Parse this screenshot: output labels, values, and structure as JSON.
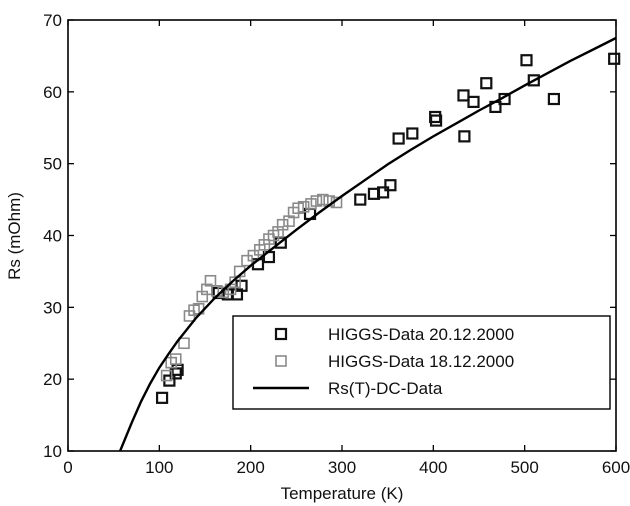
{
  "chart_data": {
    "type": "scatter",
    "title": "",
    "xlabel": "Temperature (K)",
    "ylabel": "Rs (mOhm)",
    "xlim": [
      0,
      600
    ],
    "ylim": [
      10,
      70
    ],
    "xticks": [
      0,
      100,
      200,
      300,
      400,
      500,
      600
    ],
    "yticks": [
      10,
      20,
      30,
      40,
      50,
      60,
      70
    ],
    "grid": false,
    "legend_position": "bottom-right",
    "series": [
      {
        "name": "HIGGS-Data 20.12.2000",
        "kind": "scatter",
        "marker": "square",
        "color": "#111111",
        "points": [
          [
            103,
            17.4
          ],
          [
            111,
            19.8
          ],
          [
            118,
            20.8
          ],
          [
            120,
            21.3
          ],
          [
            165,
            32.0
          ],
          [
            175,
            31.8
          ],
          [
            185,
            31.8
          ],
          [
            190,
            33.0
          ],
          [
            208,
            36.0
          ],
          [
            220,
            37.0
          ],
          [
            233,
            39.0
          ],
          [
            265,
            43.0
          ],
          [
            320,
            45.0
          ],
          [
            335,
            45.8
          ],
          [
            345,
            46.0
          ],
          [
            353,
            47.0
          ],
          [
            362,
            53.5
          ],
          [
            377,
            54.2
          ],
          [
            402,
            56.5
          ],
          [
            403,
            56.0
          ],
          [
            433,
            59.5
          ],
          [
            434,
            53.8
          ],
          [
            444,
            58.6
          ],
          [
            458,
            61.2
          ],
          [
            468,
            57.9
          ],
          [
            478,
            59.0
          ],
          [
            502,
            64.4
          ],
          [
            510,
            61.6
          ],
          [
            532,
            59.0
          ],
          [
            598,
            64.6
          ]
        ]
      },
      {
        "name": "HIGGS-Data 18.12.2000",
        "kind": "scatter",
        "marker": "square",
        "color": "#8a8a8a",
        "points": [
          [
            108,
            20.5
          ],
          [
            113,
            22.3
          ],
          [
            118,
            22.8
          ],
          [
            127,
            25.0
          ],
          [
            133,
            28.8
          ],
          [
            138,
            29.6
          ],
          [
            143,
            29.8
          ],
          [
            147,
            31.5
          ],
          [
            152,
            32.5
          ],
          [
            156,
            33.7
          ],
          [
            163,
            32.3
          ],
          [
            170,
            32.1
          ],
          [
            178,
            32.5
          ],
          [
            183,
            33.5
          ],
          [
            188,
            35.0
          ],
          [
            196,
            36.5
          ],
          [
            203,
            37.2
          ],
          [
            210,
            38.0
          ],
          [
            215,
            38.7
          ],
          [
            220,
            39.5
          ],
          [
            225,
            40.0
          ],
          [
            230,
            40.5
          ],
          [
            235,
            41.5
          ],
          [
            242,
            42.0
          ],
          [
            247,
            43.2
          ],
          [
            252,
            43.8
          ],
          [
            258,
            44.0
          ],
          [
            266,
            44.4
          ],
          [
            272,
            44.8
          ],
          [
            279,
            45.0
          ],
          [
            286,
            44.8
          ],
          [
            294,
            44.6
          ]
        ]
      },
      {
        "name": "Rs(T)-DC-Data",
        "kind": "line",
        "color": "#000000",
        "points": [
          [
            57,
            10.0
          ],
          [
            70,
            14.0
          ],
          [
            80,
            16.9
          ],
          [
            90,
            19.4
          ],
          [
            100,
            21.6
          ],
          [
            110,
            23.5
          ],
          [
            120,
            25.3
          ],
          [
            140,
            28.5
          ],
          [
            160,
            31.2
          ],
          [
            180,
            33.6
          ],
          [
            200,
            35.8
          ],
          [
            225,
            38.3
          ],
          [
            250,
            40.8
          ],
          [
            275,
            43.2
          ],
          [
            300,
            45.5
          ],
          [
            325,
            47.7
          ],
          [
            350,
            49.9
          ],
          [
            375,
            51.9
          ],
          [
            400,
            53.8
          ],
          [
            425,
            55.6
          ],
          [
            450,
            57.4
          ],
          [
            475,
            59.1
          ],
          [
            500,
            60.9
          ],
          [
            525,
            62.6
          ],
          [
            550,
            64.3
          ],
          [
            575,
            65.9
          ],
          [
            600,
            67.5
          ]
        ]
      }
    ]
  }
}
